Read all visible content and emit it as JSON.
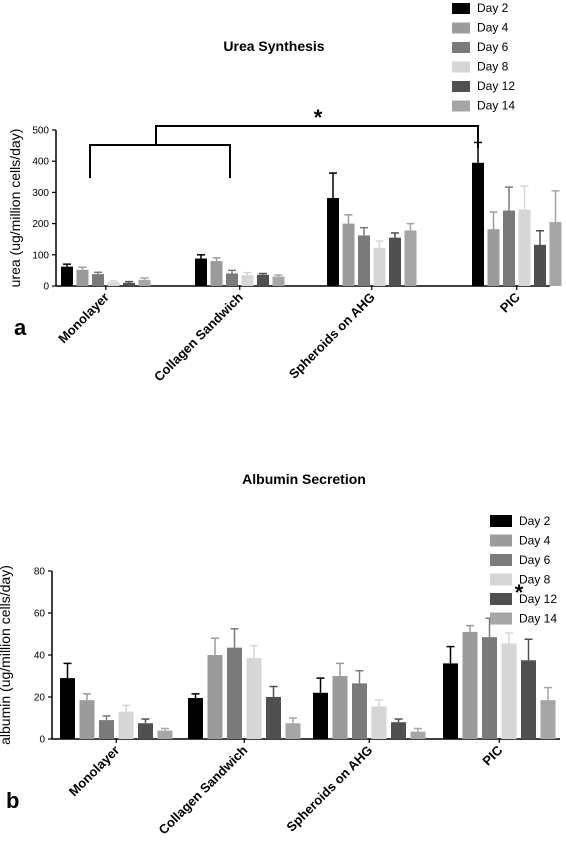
{
  "series_colors": [
    "#000000",
    "#9b9b9b",
    "#7a7a7a",
    "#d6d6d6",
    "#505050",
    "#a6a6a6"
  ],
  "chart_data": [
    {
      "type": "bar",
      "panel_label": "a",
      "title": "Urea Synthesis",
      "ylabel": "urea (ug/million cells/day)",
      "xlabel": "",
      "ylim": [
        0,
        500
      ],
      "yticks": [
        "0",
        "100",
        "200",
        "300",
        "400",
        "500"
      ],
      "categories": [
        "Monolayer",
        "Collagen Sandwich",
        "Spheroids on AHG",
        "PIC"
      ],
      "series": [
        {
          "name": "Day 2",
          "values": [
            62,
            88,
            282,
            395
          ],
          "errors": [
            8,
            12,
            80,
            65
          ]
        },
        {
          "name": "Day 4",
          "values": [
            52,
            80,
            200,
            182
          ],
          "errors": [
            8,
            10,
            28,
            55
          ]
        },
        {
          "name": "Day 6",
          "values": [
            38,
            40,
            162,
            242
          ],
          "errors": [
            6,
            10,
            25,
            75
          ]
        },
        {
          "name": "Day 8",
          "values": [
            12,
            35,
            122,
            245
          ],
          "errors": [
            4,
            8,
            22,
            75
          ]
        },
        {
          "name": "Day 12",
          "values": [
            10,
            36,
            155,
            132
          ],
          "errors": [
            4,
            4,
            15,
            45
          ]
        },
        {
          "name": "Day 14",
          "values": [
            20,
            30,
            178,
            205
          ],
          "errors": [
            6,
            5,
            22,
            100
          ]
        }
      ],
      "annotation": "*"
    },
    {
      "type": "bar",
      "panel_label": "b",
      "title": "Albumin Secretion",
      "ylabel": "albumin (ug/million cells/day)",
      "xlabel": "",
      "ylim": [
        0,
        80
      ],
      "yticks": [
        "0",
        "20",
        "40",
        "60",
        "80"
      ],
      "categories": [
        "Monolayer",
        "Collagen Sandwich",
        "Spheroids on AHG",
        "PIC"
      ],
      "series": [
        {
          "name": "Day 2",
          "values": [
            29,
            19.5,
            22,
            36
          ],
          "errors": [
            7,
            2,
            7,
            8
          ]
        },
        {
          "name": "Day 4",
          "values": [
            18.5,
            40,
            30,
            51
          ],
          "errors": [
            3,
            8,
            6,
            3
          ]
        },
        {
          "name": "Day 6",
          "values": [
            9,
            43.5,
            26.5,
            48.5
          ],
          "errors": [
            2,
            9,
            6,
            9
          ]
        },
        {
          "name": "Day 8",
          "values": [
            13,
            38.5,
            15.5,
            45.5
          ],
          "errors": [
            3,
            6,
            3,
            5
          ]
        },
        {
          "name": "Day 12",
          "values": [
            7.5,
            20,
            8,
            37.5
          ],
          "errors": [
            2,
            5,
            1.5,
            10
          ]
        },
        {
          "name": "Day 14",
          "values": [
            4,
            7.5,
            3.5,
            18.5
          ],
          "errors": [
            1,
            2.5,
            1.5,
            6
          ]
        }
      ],
      "annotation": "*"
    }
  ]
}
